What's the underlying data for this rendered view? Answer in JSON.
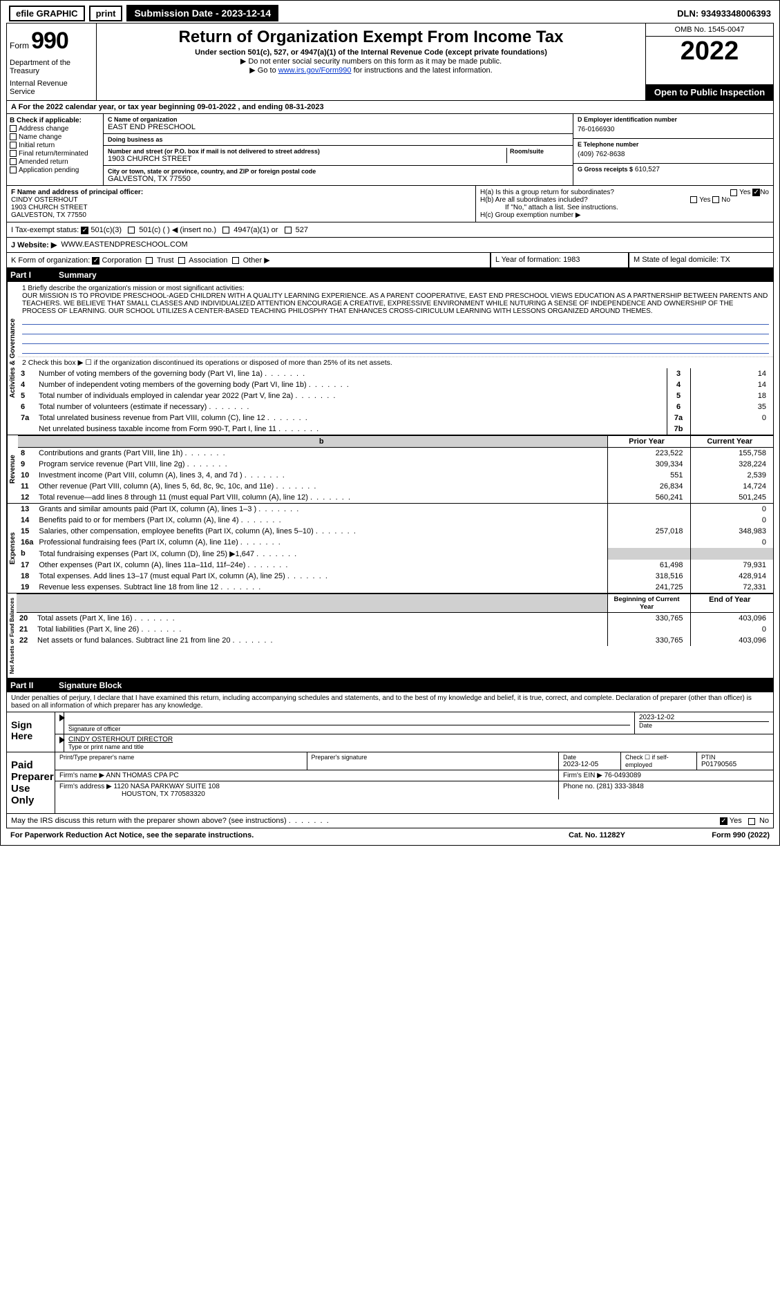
{
  "topbar": {
    "efile": "efile GRAPHIC",
    "print": "print",
    "subdate_lbl": "Submission Date - 2023-12-14",
    "dln": "DLN: 93493348006393"
  },
  "header": {
    "form_lbl": "Form",
    "form_no": "990",
    "dept": "Department of the Treasury",
    "irs": "Internal Revenue Service",
    "title": "Return of Organization Exempt From Income Tax",
    "subtitle": "Under section 501(c), 527, or 4947(a)(1) of the Internal Revenue Code (except private foundations)",
    "note1": "▶ Do not enter social security numbers on this form as it may be made public.",
    "note2_pre": "▶ Go to ",
    "note2_link": "www.irs.gov/Form990",
    "note2_post": " for instructions and the latest information.",
    "omb": "OMB No. 1545-0047",
    "year": "2022",
    "open": "Open to Public Inspection"
  },
  "rowA": {
    "text": "A For the 2022 calendar year, or tax year beginning 09-01-2022   , and ending 08-31-2023"
  },
  "colB": {
    "hdr": "B Check if applicable:",
    "items": [
      "Address change",
      "Name change",
      "Initial return",
      "Final return/terminated",
      "Amended return",
      "Application pending"
    ]
  },
  "colC": {
    "c_lbl": "C Name of organization",
    "org": "EAST END PRESCHOOL",
    "dba_lbl": "Doing business as",
    "dba": "",
    "addr_lbl": "Number and street (or P.O. box if mail is not delivered to street address)",
    "room_lbl": "Room/suite",
    "addr": "1903 CHURCH STREET",
    "city_lbl": "City or town, state or province, country, and ZIP or foreign postal code",
    "city": "GALVESTON, TX  77550"
  },
  "colD": {
    "d_lbl": "D Employer identification number",
    "ein": "76-0166930",
    "e_lbl": "E Telephone number",
    "phone": "(409) 762-8638",
    "g_lbl": "G Gross receipts $",
    "g_val": "610,527"
  },
  "rowF": {
    "f_lbl": "F Name and address of principal officer:",
    "name": "CINDY OSTERHOUT",
    "addr1": "1903 CHURCH STREET",
    "addr2": "GALVESTON, TX  77550"
  },
  "rowH": {
    "ha": "H(a) Is this a group return for subordinates?",
    "hb": "H(b) Are all subordinates included?",
    "hb_note": "If \"No,\" attach a list. See instructions.",
    "hc": "H(c) Group exemption number ▶",
    "yes": "Yes",
    "no": "No"
  },
  "rowI": {
    "lbl": "I  Tax-exempt status:",
    "opts": [
      "501(c)(3)",
      "501(c) (  ) ◀ (insert no.)",
      "4947(a)(1) or",
      "527"
    ]
  },
  "rowJ": {
    "lbl": "J  Website: ▶",
    "val": "WWW.EASTENDPRESCHOOL.COM"
  },
  "rowK": {
    "lbl": "K Form of organization:",
    "opts": [
      "Corporation",
      "Trust",
      "Association",
      "Other ▶"
    ]
  },
  "rowL": {
    "lbl": "L Year of formation:",
    "val": "1983"
  },
  "rowM": {
    "lbl": "M State of legal domicile:",
    "val": "TX"
  },
  "part1": {
    "hdr": "Part I",
    "title": "Summary",
    "line1_intro": "1  Briefly describe the organization's mission or most significant activities:",
    "mission": "OUR MISSION IS TO PROVIDE PRESCHOOL-AGED CHILDREN WITH A QUALITY LEARNING EXPERIENCE. AS A PARENT COOPERATIVE, EAST END PRESCHOOL VIEWS EDUCATION AS A PARTNERSHIP BETWEEN PARENTS AND TEACHERS. WE BELIEVE THAT SMALL CLASSES AND INDIVIDUALIZED ATTENTION ENCOURAGE A CREATIVE, EXPRESSIVE ENVIRONMENT WHILE NUTURING A SENSE OF INDEPENDENCE AND OWNERSHIP OF THE PROCESS OF LEARNING. OUR SCHOOL UTILIZES A CENTER-BASED TEACHING PHILOSPHY THAT ENHANCES CROSS-CIRICULUM LEARNING WITH LESSONS ORGANIZED AROUND THEMES.",
    "line2": "2  Check this box ▶ ☐ if the organization discontinued its operations or disposed of more than 25% of its net assets.",
    "gov": {
      "side": "Activities & Governance",
      "rows": [
        {
          "n": "3",
          "t": "Number of voting members of the governing body (Part VI, line 1a)",
          "b": "3",
          "v": "14"
        },
        {
          "n": "4",
          "t": "Number of independent voting members of the governing body (Part VI, line 1b)",
          "b": "4",
          "v": "14"
        },
        {
          "n": "5",
          "t": "Total number of individuals employed in calendar year 2022 (Part V, line 2a)",
          "b": "5",
          "v": "18"
        },
        {
          "n": "6",
          "t": "Total number of volunteers (estimate if necessary)",
          "b": "6",
          "v": "35"
        },
        {
          "n": "7a",
          "t": "Total unrelated business revenue from Part VIII, column (C), line 12",
          "b": "7a",
          "v": "0"
        },
        {
          "n": "",
          "t": "Net unrelated business taxable income from Form 990-T, Part I, line 11",
          "b": "7b",
          "v": ""
        }
      ]
    },
    "twocol_hdr": {
      "prior": "Prior Year",
      "curr": "Current Year"
    },
    "rev": {
      "side": "Revenue",
      "rows": [
        {
          "n": "8",
          "t": "Contributions and grants (Part VIII, line 1h)",
          "p": "223,522",
          "c": "155,758"
        },
        {
          "n": "9",
          "t": "Program service revenue (Part VIII, line 2g)",
          "p": "309,334",
          "c": "328,224"
        },
        {
          "n": "10",
          "t": "Investment income (Part VIII, column (A), lines 3, 4, and 7d )",
          "p": "551",
          "c": "2,539"
        },
        {
          "n": "11",
          "t": "Other revenue (Part VIII, column (A), lines 5, 6d, 8c, 9c, 10c, and 11e)",
          "p": "26,834",
          "c": "14,724"
        },
        {
          "n": "12",
          "t": "Total revenue—add lines 8 through 11 (must equal Part VIII, column (A), line 12)",
          "p": "560,241",
          "c": "501,245"
        }
      ]
    },
    "exp": {
      "side": "Expenses",
      "rows": [
        {
          "n": "13",
          "t": "Grants and similar amounts paid (Part IX, column (A), lines 1–3 )",
          "p": "",
          "c": "0"
        },
        {
          "n": "14",
          "t": "Benefits paid to or for members (Part IX, column (A), line 4)",
          "p": "",
          "c": "0"
        },
        {
          "n": "15",
          "t": "Salaries, other compensation, employee benefits (Part IX, column (A), lines 5–10)",
          "p": "257,018",
          "c": "348,983"
        },
        {
          "n": "16a",
          "t": "Professional fundraising fees (Part IX, column (A), line 11e)",
          "p": "",
          "c": "0"
        },
        {
          "n": "b",
          "t": "Total fundraising expenses (Part IX, column (D), line 25) ▶1,647",
          "p": "SHADE",
          "c": "SHADE"
        },
        {
          "n": "17",
          "t": "Other expenses (Part IX, column (A), lines 11a–11d, 11f–24e)",
          "p": "61,498",
          "c": "79,931"
        },
        {
          "n": "18",
          "t": "Total expenses. Add lines 13–17 (must equal Part IX, column (A), line 25)",
          "p": "318,516",
          "c": "428,914"
        },
        {
          "n": "19",
          "t": "Revenue less expenses. Subtract line 18 from line 12",
          "p": "241,725",
          "c": "72,331"
        }
      ]
    },
    "net_hdr": {
      "prior": "Beginning of Current Year",
      "curr": "End of Year"
    },
    "net": {
      "side": "Net Assets or Fund Balances",
      "rows": [
        {
          "n": "20",
          "t": "Total assets (Part X, line 16)",
          "p": "330,765",
          "c": "403,096"
        },
        {
          "n": "21",
          "t": "Total liabilities (Part X, line 26)",
          "p": "",
          "c": "0"
        },
        {
          "n": "22",
          "t": "Net assets or fund balances. Subtract line 21 from line 20",
          "p": "330,765",
          "c": "403,096"
        }
      ]
    }
  },
  "part2": {
    "hdr": "Part II",
    "title": "Signature Block",
    "decl": "Under penalties of perjury, I declare that I have examined this return, including accompanying schedules and statements, and to the best of my knowledge and belief, it is true, correct, and complete. Declaration of preparer (other than officer) is based on all information of which preparer has any knowledge."
  },
  "sign": {
    "lbl": "Sign Here",
    "sig_lbl": "Signature of officer",
    "date": "2023-12-02",
    "date_lbl": "Date",
    "name": "CINDY OSTERHOUT DIRECTOR",
    "name_lbl": "Type or print name and title"
  },
  "prep": {
    "lbl": "Paid Preparer Use Only",
    "h1": "Print/Type preparer's name",
    "h2": "Preparer's signature",
    "h3": "Date",
    "h4": "Check ☐ if self-employed",
    "h5": "PTIN",
    "date": "2023-12-05",
    "ptin": "P01790565",
    "firm_lbl": "Firm's name    ▶",
    "firm": "ANN THOMAS CPA PC",
    "ein_lbl": "Firm's EIN ▶",
    "ein": "76-0493089",
    "addr_lbl": "Firm's address ▶",
    "addr1": "1120 NASA PARKWAY SUITE 108",
    "addr2": "HOUSTON, TX  770583320",
    "phone_lbl": "Phone no.",
    "phone": "(281) 333-3848"
  },
  "discuss": {
    "q": "May the IRS discuss this return with the preparer shown above? (see instructions)",
    "yes": "Yes",
    "no": "No"
  },
  "foot": {
    "left": "For Paperwork Reduction Act Notice, see the separate instructions.",
    "mid": "Cat. No. 11282Y",
    "right": "Form 990 (2022)"
  },
  "colors": {
    "link": "#0033cc",
    "blueline": "#3b5fb9",
    "shade": "#d0d0d0"
  }
}
